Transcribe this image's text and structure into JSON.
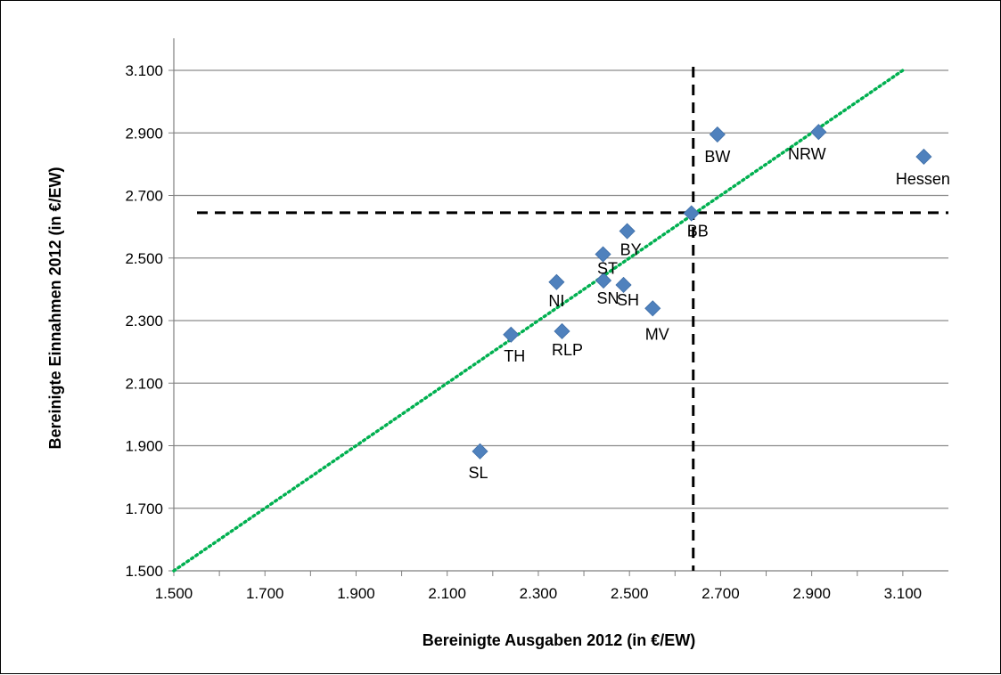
{
  "chart_data": {
    "type": "scatter",
    "title": "",
    "xlabel": "Bereinigte Ausgaben 2012 (in €/EW)",
    "ylabel": "Bereinigte Einnahmen 2012 (in €/EW)",
    "xlim": [
      1500,
      3200
    ],
    "ylim": [
      1500,
      3100
    ],
    "x_ticks": [
      {
        "value": 1500,
        "label": "1.500"
      },
      {
        "value": 1700,
        "label": "1.700"
      },
      {
        "value": 1900,
        "label": "1.900"
      },
      {
        "value": 2100,
        "label": "2.100"
      },
      {
        "value": 2300,
        "label": "2.300"
      },
      {
        "value": 2500,
        "label": "2.500"
      },
      {
        "value": 2700,
        "label": "2.700"
      },
      {
        "value": 2900,
        "label": "2.900"
      },
      {
        "value": 3100,
        "label": "3.100"
      }
    ],
    "y_ticks": [
      {
        "value": 1500,
        "label": "1.500"
      },
      {
        "value": 1700,
        "label": "1.700"
      },
      {
        "value": 1900,
        "label": "1.900"
      },
      {
        "value": 2100,
        "label": "2.100"
      },
      {
        "value": 2300,
        "label": "2.300"
      },
      {
        "value": 2500,
        "label": "2.500"
      },
      {
        "value": 2700,
        "label": "2.700"
      },
      {
        "value": 2900,
        "label": "2.900"
      },
      {
        "value": 3100,
        "label": "3.100"
      }
    ],
    "grid": "horizontal",
    "marker": "diamond",
    "points": [
      {
        "label": "BW",
        "x": 2693,
        "y": 2895
      },
      {
        "label": "NRW",
        "x": 2915,
        "y": 2903
      },
      {
        "label": "Hessen",
        "x": 3146,
        "y": 2824
      },
      {
        "label": "BB",
        "x": 2636,
        "y": 2643
      },
      {
        "label": "BY",
        "x": 2495,
        "y": 2586
      },
      {
        "label": "ST",
        "x": 2442,
        "y": 2512
      },
      {
        "label": "NI",
        "x": 2340,
        "y": 2423
      },
      {
        "label": "SN",
        "x": 2443,
        "y": 2428
      },
      {
        "label": "SH",
        "x": 2487,
        "y": 2414
      },
      {
        "label": "MV",
        "x": 2551,
        "y": 2339
      },
      {
        "label": "TH",
        "x": 2240,
        "y": 2255
      },
      {
        "label": "RLP",
        "x": 2352,
        "y": 2266
      },
      {
        "label": "SL",
        "x": 2172,
        "y": 1882
      }
    ],
    "reference_lines": {
      "mean_x": 2640,
      "mean_y": 2645,
      "style": "dashed"
    },
    "diagonal": {
      "from": [
        1500,
        1500
      ],
      "to": [
        3100,
        3100
      ],
      "style": "dotted"
    },
    "colors": {
      "marker": "#4F81BD",
      "grid": "#8C8C8C",
      "diagonal": "#00B050",
      "reference": "#000000"
    }
  }
}
